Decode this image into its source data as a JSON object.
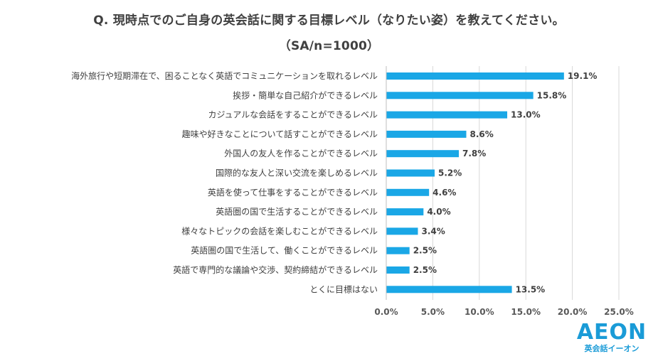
{
  "header": {
    "question": "Q. 現時点でのご自身の英会話に関する目標レベル（なりたい姿）を教えてください。",
    "sample": "（SA/n=1000）"
  },
  "colors": {
    "bar": "#1aa7e6",
    "grid": "#d9d9d9",
    "brand": "#1a9bd7"
  },
  "chart_data": {
    "type": "bar",
    "orientation": "horizontal",
    "categories": [
      "海外旅行や短期滞在で、困ることなく英語でコミュニケーションを取れるレベル",
      "挨拶・簡単な自己紹介ができるレベル",
      "カジュアルな会話をすることができるレベル",
      "趣味や好きなことについて話すことができるレベル",
      "外国人の友人を作ることができるレベル",
      "国際的な友人と深い交流を楽しめるレベル",
      "英語を使って仕事をすることができるレベル",
      "英語圏の国で生活することができるレベル",
      "様々なトピックの会話を楽しむことができるレベル",
      "英語圏の国で生活して、働くことができるレベル",
      "英語で専門的な議論や交渉、契約締結ができるレベル",
      "とくに目標はない"
    ],
    "values": [
      19.1,
      15.8,
      13.0,
      8.6,
      7.8,
      5.2,
      4.6,
      4.0,
      3.4,
      2.5,
      2.5,
      13.5
    ],
    "value_labels": [
      "19.1%",
      "15.8%",
      "13.0%",
      "8.6%",
      "7.8%",
      "5.2%",
      "4.6%",
      "4.0%",
      "3.4%",
      "2.5%",
      "2.5%",
      "13.5%"
    ],
    "xlim": [
      0,
      25
    ],
    "ticks": [
      0,
      5,
      10,
      15,
      20,
      25
    ],
    "tick_labels": [
      "0.0%",
      "5.0%",
      "10.0%",
      "15.0%",
      "20.0%",
      "25.0%"
    ],
    "grid": true
  },
  "logo": {
    "word": "AEON",
    "sub": "英会話イーオン"
  }
}
